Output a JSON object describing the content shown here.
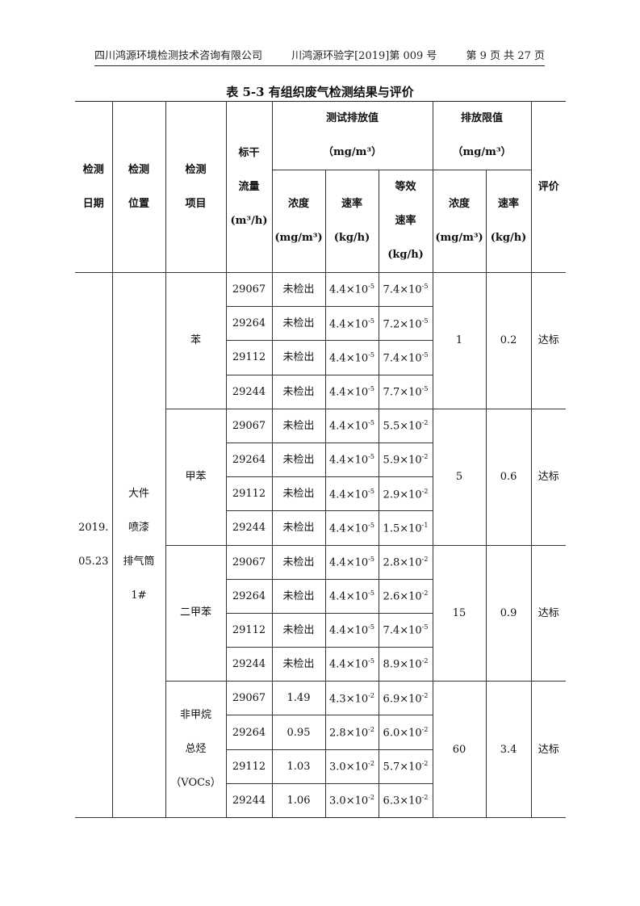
{
  "header": {
    "company": "四川鸿源环境检测技术咨询有限公司",
    "report_no": "川鸿源环验字[2019]第 009 号",
    "page": "第 9 页 共 27 页"
  },
  "table_title": "表 5-3  有组织废气检测结果与评价",
  "columns": {
    "date": "检测\n日期",
    "location": "检测\n位置",
    "item": "检测\n项目",
    "flow": "标干\n流量\n(m³/h)",
    "measured": "测试排放值\n（mg/m³）",
    "limit": "排放限值\n（mg/m³）",
    "evaluation": "评价",
    "m_conc": "浓度\n(mg/m³)",
    "m_rate": "速率\n(kg/h)",
    "m_eq_rate": "等效\n速率\n(kg/h)",
    "l_conc": "浓度\n(mg/m³)",
    "l_rate": "速率\n(kg/h)"
  },
  "date": "2019.\n05.23",
  "location": "大件\n喷漆\n排气筒\n1#",
  "groups": [
    {
      "item": "苯",
      "limit_conc": "1",
      "limit_rate": "0.2",
      "evaluation": "达标",
      "rows": [
        [
          "29067",
          "未检出",
          [
            "4.4",
            "-5"
          ],
          [
            "7.4",
            "-5"
          ]
        ],
        [
          "29264",
          "未检出",
          [
            "4.4",
            "-5"
          ],
          [
            "7.2",
            "-5"
          ]
        ],
        [
          "29112",
          "未检出",
          [
            "4.4",
            "-5"
          ],
          [
            "7.4",
            "-5"
          ]
        ],
        [
          "29244",
          "未检出",
          [
            "4.4",
            "-5"
          ],
          [
            "7.7",
            "-5"
          ]
        ]
      ]
    },
    {
      "item": "甲苯",
      "limit_conc": "5",
      "limit_rate": "0.6",
      "evaluation": "达标",
      "rows": [
        [
          "29067",
          "未检出",
          [
            "4.4",
            "-5"
          ],
          [
            "5.5",
            "-2"
          ]
        ],
        [
          "29264",
          "未检出",
          [
            "4.4",
            "-5"
          ],
          [
            "5.9",
            "-2"
          ]
        ],
        [
          "29112",
          "未检出",
          [
            "4.4",
            "-5"
          ],
          [
            "2.9",
            "-2"
          ]
        ],
        [
          "29244",
          "未检出",
          [
            "4.4",
            "-5"
          ],
          [
            "1.5",
            "-1"
          ]
        ]
      ]
    },
    {
      "item": "二甲苯",
      "limit_conc": "15",
      "limit_rate": "0.9",
      "evaluation": "达标",
      "rows": [
        [
          "29067",
          "未检出",
          [
            "4.4",
            "-5"
          ],
          [
            "2.8",
            "-2"
          ]
        ],
        [
          "29264",
          "未检出",
          [
            "4.4",
            "-5"
          ],
          [
            "2.6",
            "-2"
          ]
        ],
        [
          "29112",
          "未检出",
          [
            "4.4",
            "-5"
          ],
          [
            "7.4",
            "-5"
          ]
        ],
        [
          "29244",
          "未检出",
          [
            "4.4",
            "-5"
          ],
          [
            "8.9",
            "-2"
          ]
        ]
      ]
    },
    {
      "item": "非甲烷\n总烃\n（VOCs）",
      "limit_conc": "60",
      "limit_rate": "3.4",
      "evaluation": "达标",
      "rows": [
        [
          "29067",
          "1.49",
          [
            "4.3",
            "-2"
          ],
          [
            "6.9",
            "-2"
          ]
        ],
        [
          "29264",
          "0.95",
          [
            "2.8",
            "-2"
          ],
          [
            "6.0",
            "-2"
          ]
        ],
        [
          "29112",
          "1.03",
          [
            "3.0",
            "-2"
          ],
          [
            "5.7",
            "-2"
          ]
        ],
        [
          "29244",
          "1.06",
          [
            "3.0",
            "-2"
          ],
          [
            "6.3",
            "-2"
          ]
        ]
      ]
    }
  ]
}
